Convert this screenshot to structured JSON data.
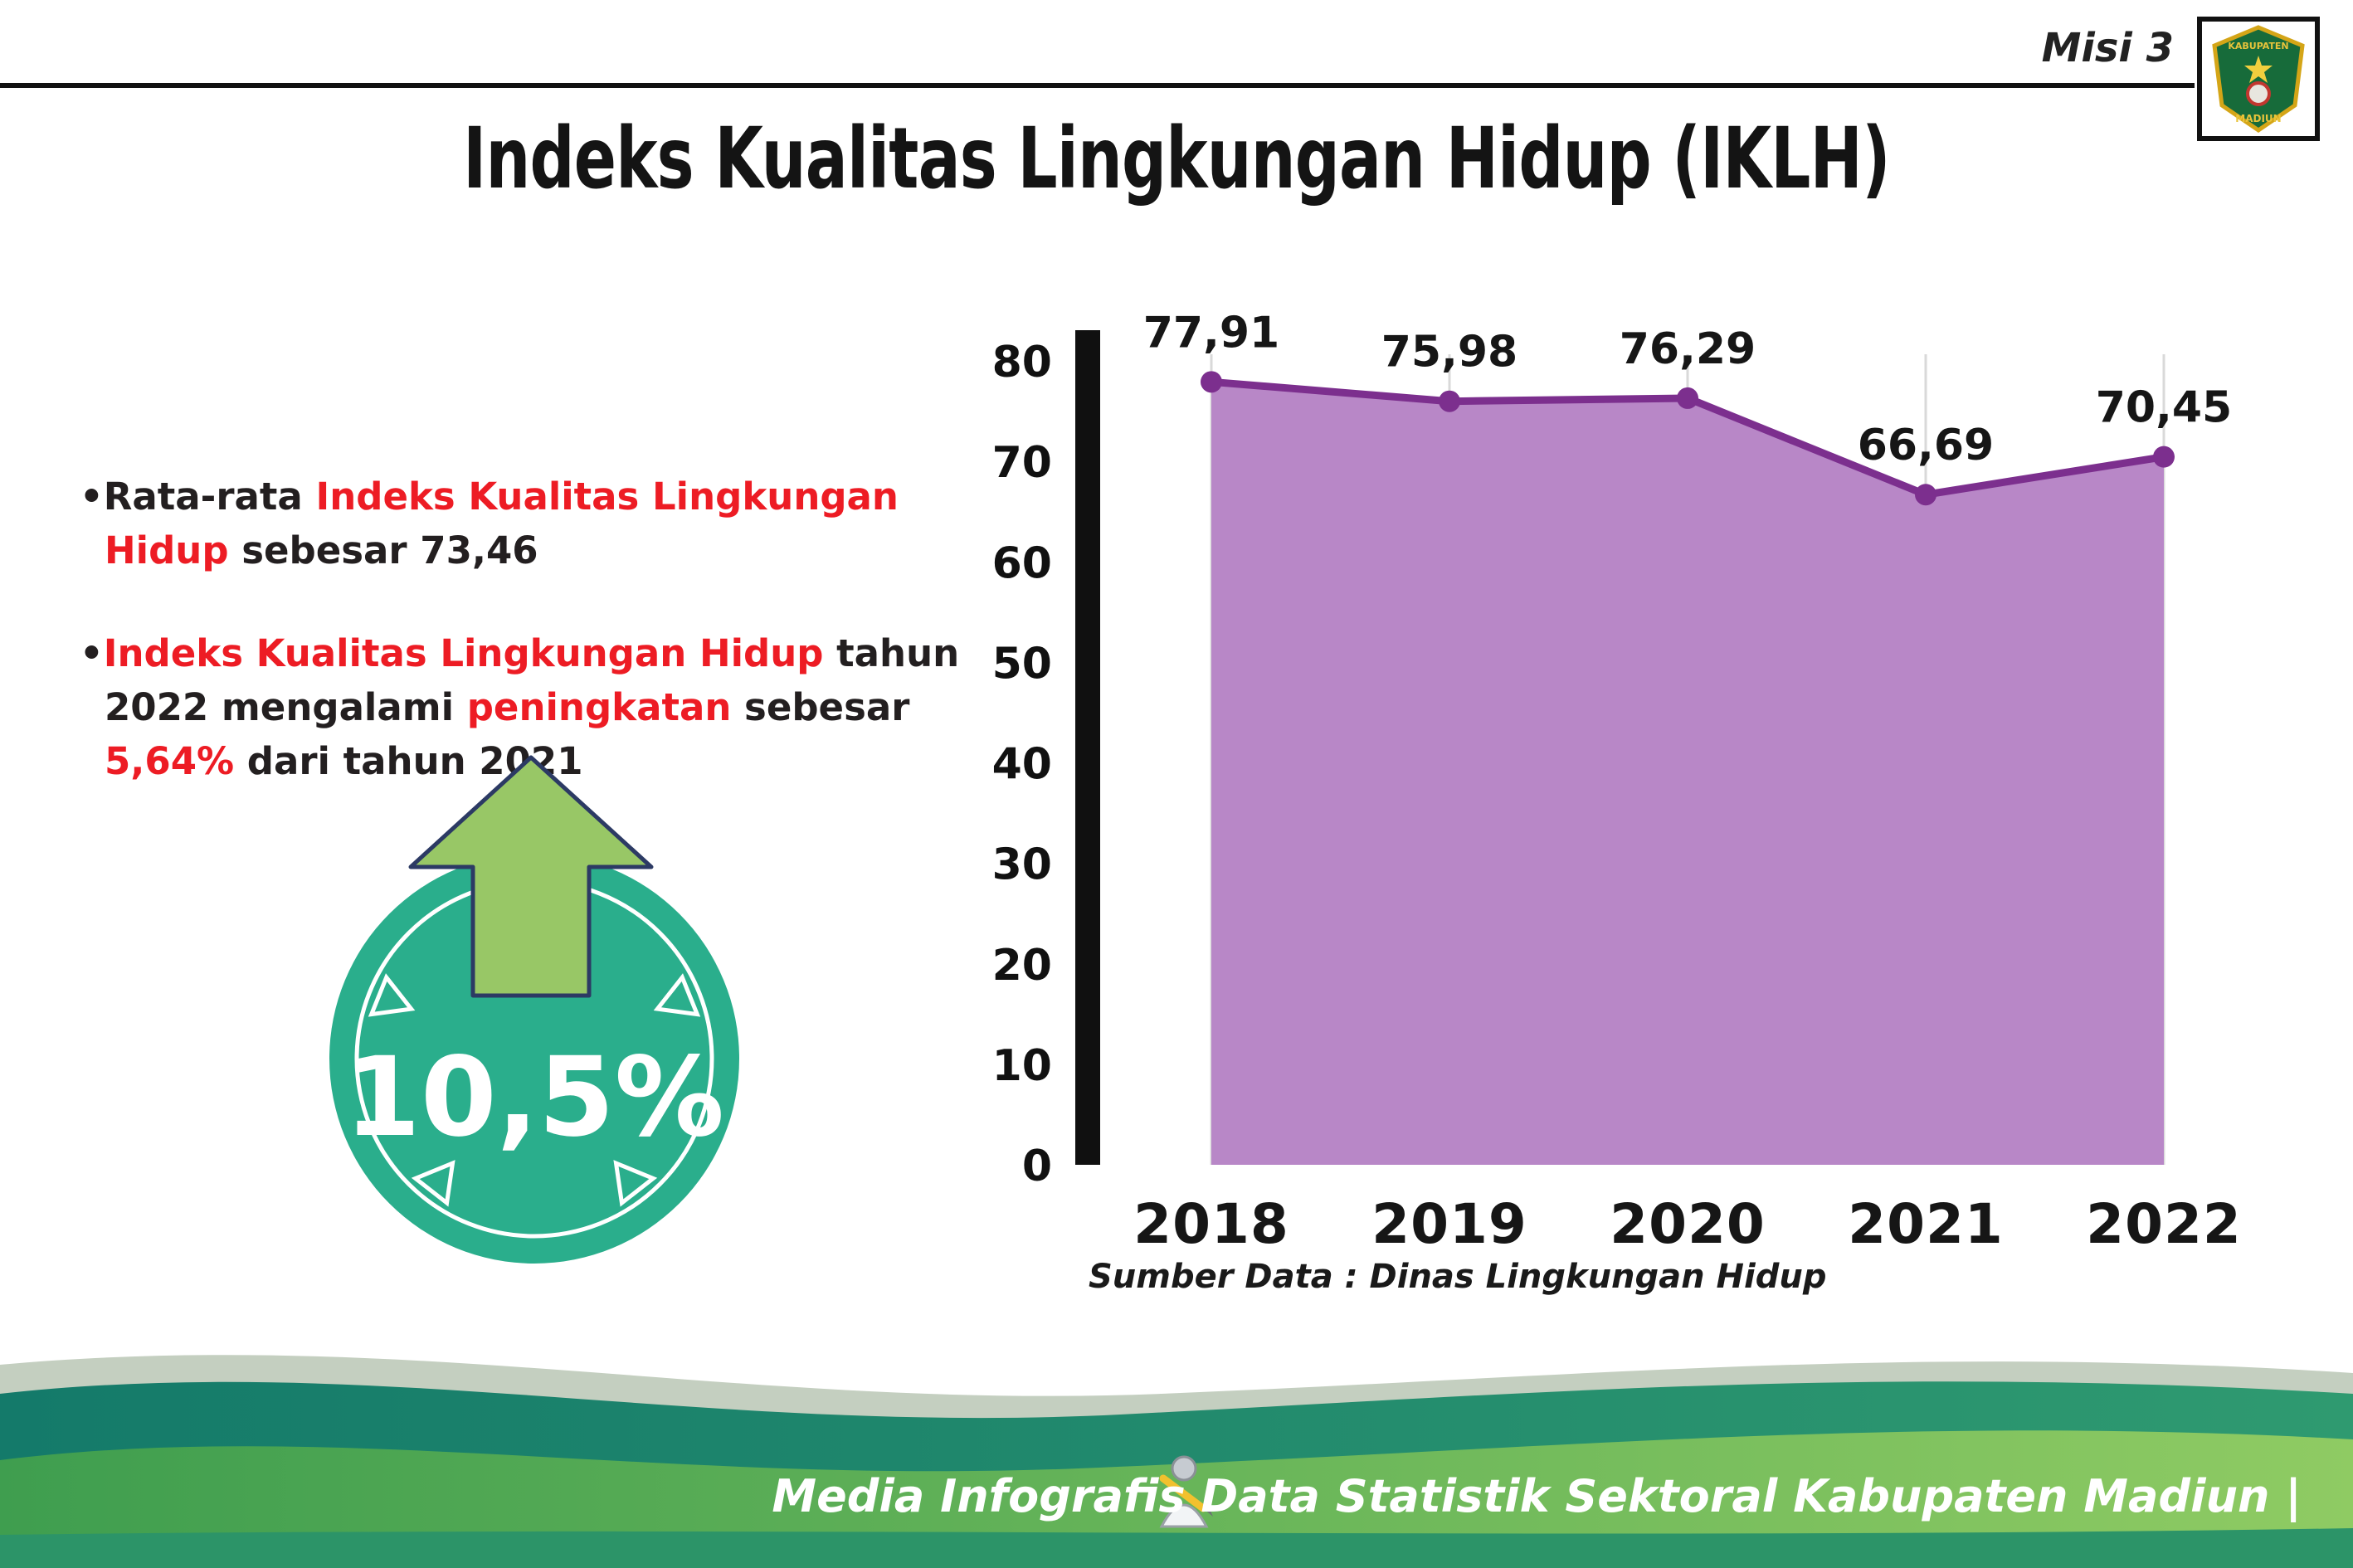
{
  "header": {
    "misi": "Misi 3",
    "title": "Indeks Kualitas Lingkungan Hidup (IKLH)",
    "logo": {
      "top": "KABUPATEN",
      "bottom": "MADIUN"
    }
  },
  "bullets": [
    {
      "segments": [
        {
          "text": "Rata-rata ",
          "color": "#231f20"
        },
        {
          "text": "Indeks Kualitas Lingkungan Hidup",
          "color": "#ed1c24"
        },
        {
          "text": " sebesar 73,46",
          "color": "#231f20"
        }
      ]
    },
    {
      "segments": [
        {
          "text": "Indeks Kualitas Lingkungan Hidup",
          "color": "#ed1c24"
        },
        {
          "text": " tahun 2022 mengalami ",
          "color": "#231f20"
        },
        {
          "text": "peningkatan",
          "color": "#ed1c24"
        },
        {
          "text": " sebesar ",
          "color": "#231f20"
        },
        {
          "text": "5,64%",
          "color": "#ed1c24"
        },
        {
          "text": " dari tahun 2021",
          "color": "#231f20"
        }
      ]
    }
  ],
  "badge": {
    "value": "10,5%",
    "circle_color": "#2aae8c",
    "arrow_color": "#98c766"
  },
  "chart_data": {
    "type": "area",
    "categories": [
      "2018",
      "2019",
      "2020",
      "2021",
      "2022"
    ],
    "values": [
      77.91,
      75.98,
      76.29,
      66.69,
      70.45
    ],
    "value_labels": [
      "77,91",
      "75,98",
      "76,29",
      "66,69",
      "70,45"
    ],
    "title": "",
    "xlabel": "",
    "ylabel": "",
    "ylim": [
      0,
      80
    ],
    "yticks": [
      0,
      10,
      20,
      30,
      40,
      50,
      60,
      70,
      80
    ],
    "fill_color": "#b887c7",
    "line_color": "#7c2f8e",
    "grid": "vertical",
    "legend": "none"
  },
  "source": "Sumber Data : Dinas Lingkungan Hidup",
  "footer": {
    "text": "Media Infografis Data Statistik Sektoral Kabupaten Madiun |"
  }
}
